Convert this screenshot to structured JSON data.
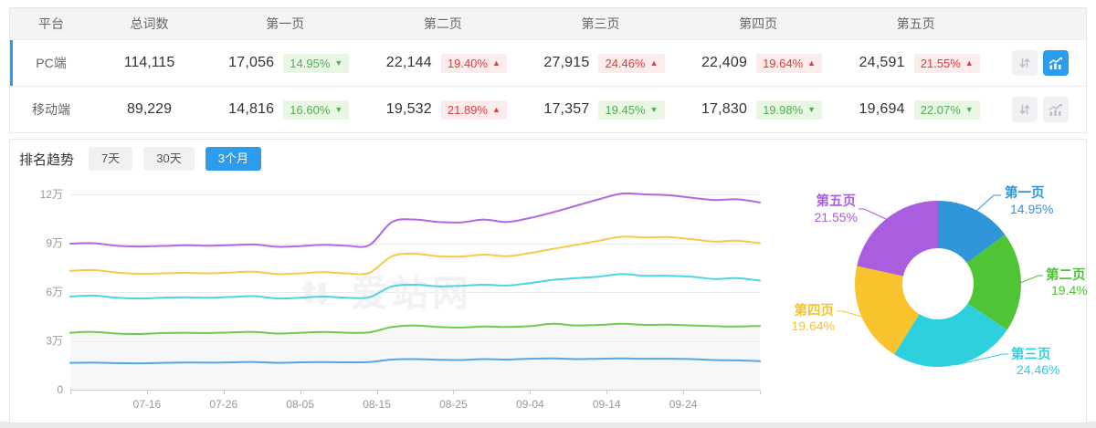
{
  "table": {
    "columns": [
      "平台",
      "总词数",
      "第一页",
      "第二页",
      "第三页",
      "第四页",
      "第五页"
    ],
    "rows": [
      {
        "platform": "PC端",
        "total": "114,115",
        "selected": true,
        "chart_active": true,
        "pages": [
          {
            "count": "17,056",
            "pct": "14.95%",
            "dir": "down",
            "tone": "green"
          },
          {
            "count": "22,144",
            "pct": "19.40%",
            "dir": "up",
            "tone": "red"
          },
          {
            "count": "27,915",
            "pct": "24.46%",
            "dir": "up",
            "tone": "red"
          },
          {
            "count": "22,409",
            "pct": "19.64%",
            "dir": "up",
            "tone": "red"
          },
          {
            "count": "24,591",
            "pct": "21.55%",
            "dir": "up",
            "tone": "red"
          }
        ]
      },
      {
        "platform": "移动端",
        "total": "89,229",
        "selected": false,
        "chart_active": false,
        "pages": [
          {
            "count": "14,816",
            "pct": "16.60%",
            "dir": "down",
            "tone": "green"
          },
          {
            "count": "19,532",
            "pct": "21.89%",
            "dir": "up",
            "tone": "red"
          },
          {
            "count": "17,357",
            "pct": "19.45%",
            "dir": "down",
            "tone": "green"
          },
          {
            "count": "17,830",
            "pct": "19.98%",
            "dir": "down",
            "tone": "green"
          },
          {
            "count": "19,694",
            "pct": "22.07%",
            "dir": "down",
            "tone": "green"
          }
        ]
      }
    ]
  },
  "trend": {
    "label": "排名趋势",
    "tabs": [
      {
        "label": "7天",
        "active": false
      },
      {
        "label": "30天",
        "active": false
      },
      {
        "label": "3个月",
        "active": true
      }
    ]
  },
  "icons": {
    "up": "▲",
    "down": "▼"
  },
  "watermark": {
    "text": "爱站网"
  },
  "colors": {
    "accent_blue": "#2d9ceb",
    "badge_green": "#4fb150",
    "badge_red": "#e23b3b"
  },
  "chart_data": [
    {
      "type": "line",
      "title": "排名趋势 (3个月)",
      "x_tick_labels": [
        "07-16",
        "07-26",
        "08-05",
        "08-15",
        "08-25",
        "09-04",
        "09-14",
        "09-24"
      ],
      "x_tick_days": [
        10,
        20,
        30,
        40,
        50,
        60,
        70,
        80
      ],
      "x_domain_days": [
        0,
        90
      ],
      "y_tick_labels": [
        "0",
        "3万",
        "6万",
        "9万",
        "12万"
      ],
      "y_tick_values_wan": [
        0,
        3,
        6,
        9,
        12
      ],
      "ylim_wan": [
        0,
        12
      ],
      "grid": true,
      "sample_days": [
        0,
        3,
        6,
        9,
        12,
        15,
        18,
        21,
        24,
        27,
        30,
        33,
        36,
        39,
        42,
        45,
        48,
        51,
        54,
        57,
        60,
        63,
        66,
        69,
        72,
        75,
        78,
        81,
        84,
        87,
        90
      ],
      "series": [
        {
          "name": "第一页",
          "color": "#55a8e6",
          "values_wan": [
            1.65,
            1.66,
            1.63,
            1.62,
            1.65,
            1.67,
            1.66,
            1.68,
            1.7,
            1.65,
            1.68,
            1.7,
            1.68,
            1.7,
            1.85,
            1.88,
            1.84,
            1.82,
            1.88,
            1.85,
            1.9,
            1.92,
            1.88,
            1.9,
            1.92,
            1.9,
            1.9,
            1.88,
            1.82,
            1.8,
            1.75
          ]
        },
        {
          "name": "第二页",
          "color": "#6fca52",
          "area_fill": "#f7f7f8",
          "values_wan": [
            3.5,
            3.55,
            3.45,
            3.42,
            3.48,
            3.5,
            3.48,
            3.52,
            3.55,
            3.45,
            3.5,
            3.55,
            3.5,
            3.52,
            3.85,
            3.95,
            3.85,
            3.82,
            3.88,
            3.85,
            3.9,
            4.05,
            3.95,
            3.98,
            4.05,
            3.98,
            4.0,
            3.95,
            3.9,
            3.88,
            3.92
          ]
        },
        {
          "name": "第三页",
          "color": "#4cd5de",
          "values_wan": [
            5.72,
            5.78,
            5.65,
            5.6,
            5.65,
            5.68,
            5.65,
            5.7,
            5.75,
            5.6,
            5.65,
            5.72,
            5.65,
            5.68,
            6.35,
            6.45,
            6.35,
            6.38,
            6.45,
            6.4,
            6.55,
            6.75,
            6.85,
            6.95,
            7.1,
            7.0,
            7.0,
            6.95,
            6.8,
            6.85,
            6.7
          ]
        },
        {
          "name": "第四页",
          "color": "#f9c84a",
          "values_wan": [
            7.3,
            7.35,
            7.2,
            7.12,
            7.15,
            7.18,
            7.15,
            7.2,
            7.25,
            7.1,
            7.15,
            7.22,
            7.15,
            7.18,
            8.2,
            8.35,
            8.2,
            8.18,
            8.3,
            8.2,
            8.4,
            8.65,
            8.9,
            9.15,
            9.4,
            9.35,
            9.38,
            9.25,
            9.1,
            9.15,
            9.0
          ]
        },
        {
          "name": "第五页",
          "color": "#b168e2",
          "values_wan": [
            8.97,
            9.0,
            8.85,
            8.8,
            8.83,
            8.87,
            8.85,
            8.88,
            8.92,
            8.78,
            8.82,
            8.9,
            8.85,
            8.88,
            10.3,
            10.45,
            10.3,
            10.28,
            10.45,
            10.3,
            10.55,
            10.9,
            11.3,
            11.7,
            12.05,
            12.0,
            11.95,
            11.8,
            11.65,
            11.7,
            11.5
          ]
        }
      ]
    },
    {
      "type": "pie",
      "donut": true,
      "direction": "clockwise",
      "start_angle_deg": 0,
      "slices": [
        {
          "label": "第一页",
          "value": 14.95,
          "display": "14.95%",
          "color": "#2f97d9"
        },
        {
          "label": "第二页",
          "value": 19.4,
          "display": "19.4%",
          "color": "#4fc436"
        },
        {
          "label": "第三页",
          "value": 24.46,
          "display": "24.46%",
          "color": "#2fd0dd"
        },
        {
          "label": "第四页",
          "value": 19.64,
          "display": "19.64%",
          "color": "#f8c32d"
        },
        {
          "label": "第五页",
          "value": 21.55,
          "display": "21.55%",
          "color": "#a95ddf"
        }
      ]
    }
  ]
}
